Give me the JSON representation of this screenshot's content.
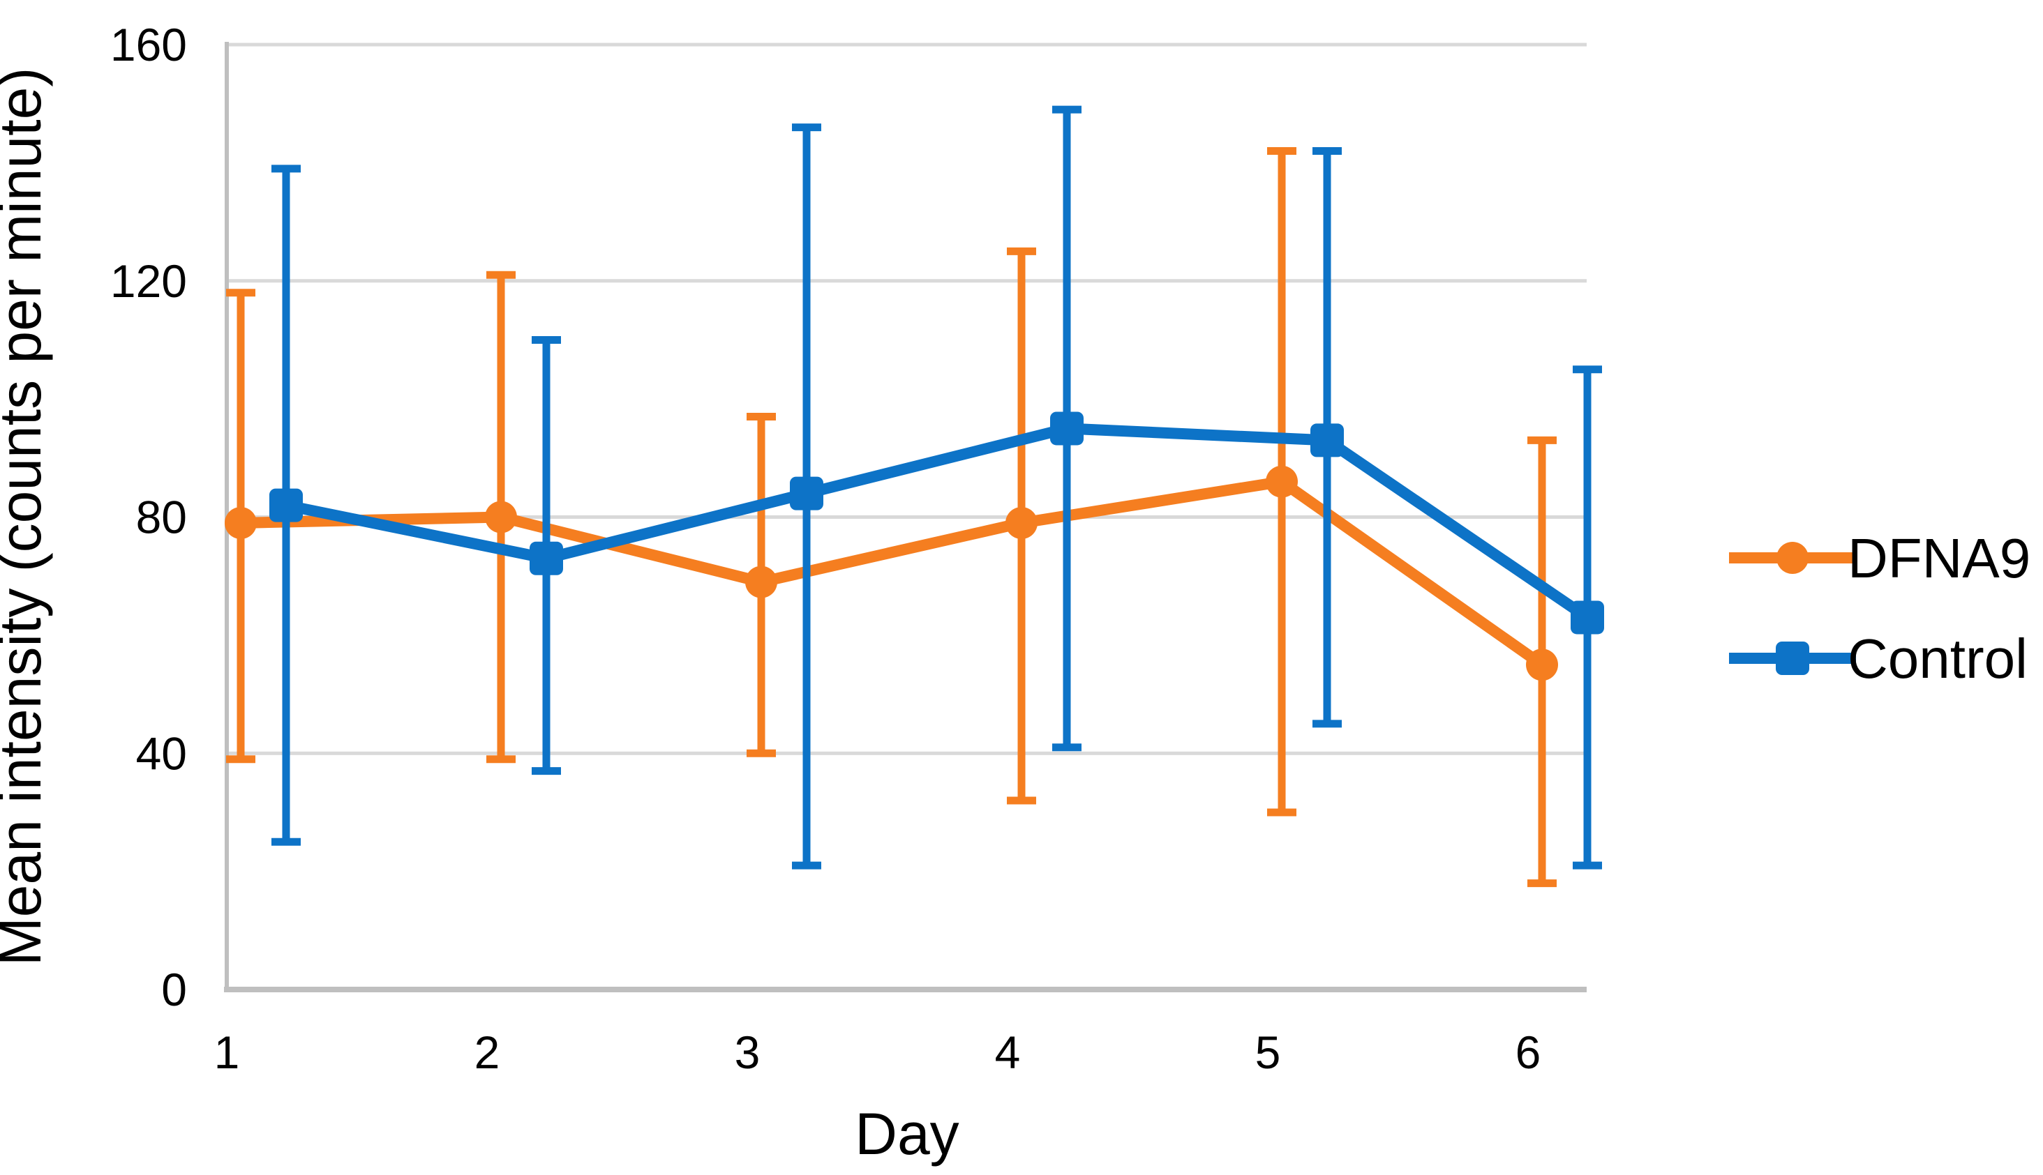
{
  "chart_data": {
    "type": "line",
    "xlabel": "Day",
    "ylabel": "Mean intensity (counts per minute)",
    "x": [
      1,
      2,
      3,
      4,
      5,
      6
    ],
    "ylim": [
      0,
      160
    ],
    "yticks": [
      0,
      40,
      80,
      120,
      160
    ],
    "grid": "horizontal",
    "legend_position": "right",
    "series": [
      {
        "name": "DFNA9",
        "color": "#F57E20",
        "marker": "circle",
        "values": [
          79,
          80,
          69,
          79,
          86,
          55
        ],
        "error_low": [
          39,
          39,
          40,
          32,
          30,
          18
        ],
        "error_high": [
          118,
          121,
          97,
          125,
          142,
          93
        ]
      },
      {
        "name": "Control",
        "color": "#0D73C7",
        "marker": "square",
        "values": [
          82,
          73,
          84,
          95,
          93,
          63
        ],
        "error_low": [
          25,
          37,
          21,
          41,
          45,
          21
        ],
        "error_high": [
          139,
          110,
          146,
          149,
          142,
          105
        ]
      }
    ]
  }
}
